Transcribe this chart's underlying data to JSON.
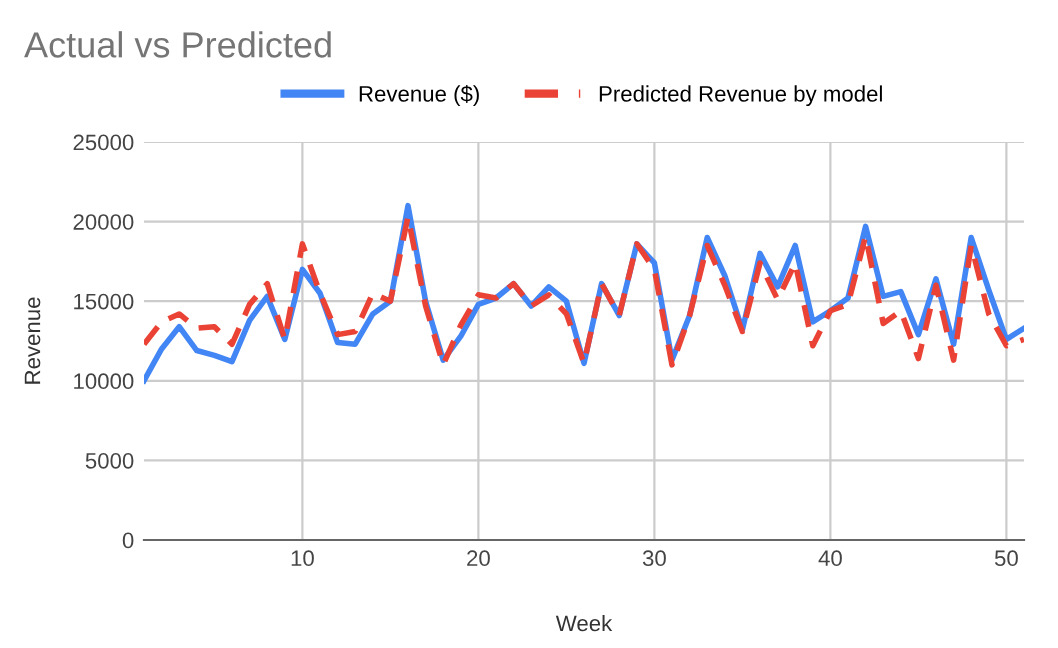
{
  "chart_data": {
    "type": "line",
    "title": "Actual vs Predicted",
    "xlabel": "Week",
    "ylabel": "Revenue",
    "x": [
      1,
      2,
      3,
      4,
      5,
      6,
      7,
      8,
      9,
      10,
      11,
      12,
      13,
      14,
      15,
      16,
      17,
      18,
      19,
      20,
      21,
      22,
      23,
      24,
      25,
      26,
      27,
      28,
      29,
      30,
      31,
      32,
      33,
      34,
      35,
      36,
      37,
      38,
      39,
      40,
      41,
      42,
      43,
      44,
      45,
      46,
      47,
      48,
      49,
      50,
      51
    ],
    "series": [
      {
        "name": "Revenue ($)",
        "color": "#4285f4",
        "line_style": "solid",
        "values": [
          10000,
          12000,
          13400,
          11900,
          11600,
          11200,
          13800,
          15300,
          12600,
          17000,
          15500,
          12400,
          12300,
          14200,
          15000,
          21000,
          15000,
          11300,
          12800,
          14800,
          15200,
          16100,
          14700,
          15900,
          15000,
          11100,
          16100,
          14100,
          18600,
          17400,
          11300,
          14100,
          19000,
          16600,
          13200,
          18000,
          15900,
          18500,
          13700,
          14400,
          15200,
          19700,
          15300,
          15600,
          12900,
          16400,
          12300,
          19000,
          15700,
          12600,
          13300
        ]
      },
      {
        "name": "Predicted Revenue by model",
        "color": "#ea4335",
        "line_style": "dashed",
        "values": [
          12300,
          13700,
          14200,
          13300,
          13400,
          12300,
          14800,
          16100,
          12600,
          18600,
          15500,
          12900,
          13100,
          15500,
          15000,
          20300,
          14700,
          11000,
          13500,
          15400,
          15200,
          16100,
          14700,
          15400,
          14200,
          11100,
          16100,
          14100,
          18600,
          17000,
          11000,
          14100,
          18500,
          16000,
          13100,
          17400,
          15100,
          17400,
          12200,
          14400,
          14800,
          19100,
          13600,
          14400,
          11400,
          16000,
          11300,
          18500,
          14200,
          12200,
          12600
        ]
      }
    ],
    "xlim": [
      1,
      51
    ],
    "xticks": [
      10,
      20,
      30,
      40,
      50
    ],
    "ylim": [
      0,
      25000
    ],
    "yticks": [
      0,
      5000,
      10000,
      15000,
      20000,
      25000
    ],
    "grid": true,
    "legend": "top",
    "marker": "none"
  }
}
